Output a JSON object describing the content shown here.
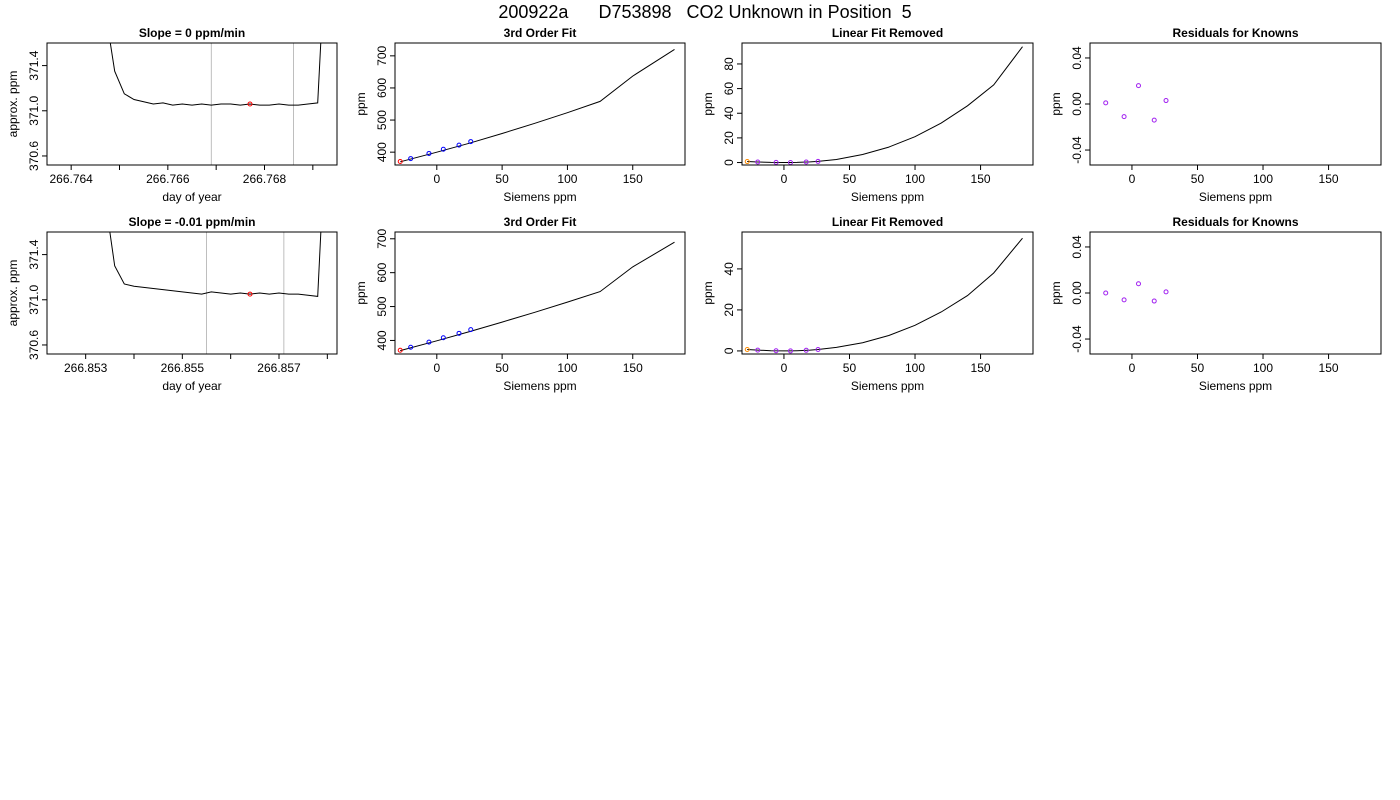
{
  "figure": {
    "title": "200922a      D753898   CO2 Unknown in Position  5"
  },
  "colors": {
    "line": "#000000",
    "marker_red": "#ff0000",
    "marker_blue": "#0000ff",
    "marker_orange": "#ff8c00",
    "marker_purple": "#a020f0",
    "vertical_lines": "#bebebe",
    "frame": "#000000"
  },
  "chart_data": [
    {
      "type": "line",
      "title": "Slope =  0  ppm/min",
      "xlabel": "day of year",
      "ylabel": "approx. ppm",
      "xlim": [
        266.7635,
        266.7695
      ],
      "ylim": [
        370.52,
        371.6
      ],
      "xticks": [
        266.764,
        266.765,
        266.766,
        266.767,
        266.768,
        266.769
      ],
      "xtick_labels": [
        "266.764",
        "",
        "266.766",
        "",
        "266.768",
        ""
      ],
      "yticks": [
        370.6,
        371.0,
        371.4
      ],
      "ytick_labels": [
        "370.6",
        "371.0",
        "371.4"
      ],
      "vlines": [
        266.7669,
        266.7686
      ],
      "series": [
        {
          "x": [
            266.7647,
            266.7649,
            266.7651,
            266.7653,
            266.7655,
            266.7657,
            266.7659,
            266.7661,
            266.7663,
            266.7665,
            266.7667,
            266.7669,
            266.7671,
            266.7673,
            266.7675,
            266.7677,
            266.7679,
            266.7681,
            266.7683,
            266.7685,
            266.7687,
            266.7689,
            266.7691,
            266.7692
          ],
          "y": [
            371.9,
            371.35,
            371.15,
            371.1,
            371.08,
            371.06,
            371.07,
            371.05,
            371.06,
            371.05,
            371.06,
            371.05,
            371.06,
            371.06,
            371.05,
            371.06,
            371.05,
            371.05,
            371.06,
            371.05,
            371.05,
            371.06,
            371.07,
            371.9
          ]
        }
      ],
      "points": [
        {
          "x": 266.7677,
          "y": 371.06,
          "color": "red"
        }
      ]
    },
    {
      "type": "line",
      "title": "3rd Order Fit",
      "xlabel": "Siemens ppm",
      "ylabel": "ppm",
      "xlim": [
        -32,
        190
      ],
      "ylim": [
        360,
        740
      ],
      "xticks": [
        0,
        50,
        100,
        150
      ],
      "xtick_labels": [
        "0",
        "50",
        "100",
        "150"
      ],
      "yticks": [
        400,
        500,
        600,
        700
      ],
      "ytick_labels": [
        "400",
        "500",
        "600",
        "700"
      ],
      "series": [
        {
          "x": [
            -28,
            0,
            25,
            50,
            75,
            100,
            125,
            150,
            182
          ],
          "y": [
            370,
            400,
            428,
            458,
            490,
            523,
            558,
            637,
            720
          ]
        }
      ],
      "points": [
        {
          "x": -28,
          "y": 371,
          "color": "red"
        },
        {
          "x": -20,
          "y": 380,
          "color": "blue"
        },
        {
          "x": -6,
          "y": 396,
          "color": "blue"
        },
        {
          "x": 5,
          "y": 409,
          "color": "blue"
        },
        {
          "x": 17,
          "y": 422,
          "color": "blue"
        },
        {
          "x": 26,
          "y": 433,
          "color": "blue"
        }
      ]
    },
    {
      "type": "line",
      "title": "Linear Fit Removed",
      "xlabel": "Siemens ppm",
      "ylabel": "ppm",
      "xlim": [
        -32,
        190
      ],
      "ylim": [
        -2,
        97
      ],
      "xticks": [
        0,
        50,
        100,
        150
      ],
      "xtick_labels": [
        "0",
        "50",
        "100",
        "150"
      ],
      "yticks": [
        0,
        20,
        40,
        60,
        80
      ],
      "ytick_labels": [
        "0",
        "20",
        "40",
        "60",
        "80"
      ],
      "series": [
        {
          "x": [
            -28,
            -20,
            -10,
            0,
            5,
            10,
            20,
            26,
            40,
            60,
            80,
            100,
            120,
            140,
            160,
            182
          ],
          "y": [
            0.8,
            0.4,
            0.1,
            0,
            0,
            0.1,
            0.5,
            0.9,
            2.5,
            6.5,
            12.5,
            21,
            32,
            46,
            63,
            94
          ]
        }
      ],
      "points": [
        {
          "x": -28,
          "y": 0.8,
          "color": "orange"
        },
        {
          "x": -20,
          "y": 0.4,
          "color": "purple"
        },
        {
          "x": -6,
          "y": 0.1,
          "color": "purple"
        },
        {
          "x": 5,
          "y": 0,
          "color": "purple"
        },
        {
          "x": 17,
          "y": 0.4,
          "color": "purple"
        },
        {
          "x": 26,
          "y": 0.9,
          "color": "purple"
        }
      ]
    },
    {
      "type": "scatter",
      "title": "Residuals for Knowns",
      "xlabel": "Siemens ppm",
      "ylabel": "ppm",
      "xlim": [
        -32,
        190
      ],
      "ylim": [
        -0.053,
        0.053
      ],
      "xticks": [
        0,
        50,
        100,
        150
      ],
      "xtick_labels": [
        "0",
        "50",
        "100",
        "150"
      ],
      "yticks": [
        -0.04,
        0.0,
        0.04
      ],
      "ytick_labels": [
        "-0.04",
        "0.00",
        "0.04"
      ],
      "points": [
        {
          "x": -20,
          "y": 0.001,
          "color": "purple"
        },
        {
          "x": -6,
          "y": -0.011,
          "color": "purple"
        },
        {
          "x": 5,
          "y": 0.016,
          "color": "purple"
        },
        {
          "x": 17,
          "y": -0.014,
          "color": "purple"
        },
        {
          "x": 26,
          "y": 0.003,
          "color": "purple"
        }
      ]
    },
    {
      "type": "line",
      "title": "Slope =  -0.01  ppm/min",
      "xlabel": "day of year",
      "ylabel": "approx. ppm",
      "xlim": [
        266.8522,
        266.8582
      ],
      "ylim": [
        370.52,
        371.6
      ],
      "xticks": [
        266.853,
        266.854,
        266.855,
        266.856,
        266.857,
        266.858
      ],
      "xtick_labels": [
        "266.853",
        "",
        "266.855",
        "",
        "266.857",
        ""
      ],
      "yticks": [
        370.6,
        371.0,
        371.4
      ],
      "ytick_labels": [
        "370.6",
        "371.0",
        "371.4"
      ],
      "vlines": [
        266.8555,
        266.8571
      ],
      "series": [
        {
          "x": [
            266.8534,
            266.8536,
            266.8538,
            266.854,
            266.8542,
            266.8544,
            266.8546,
            266.8548,
            266.855,
            266.8552,
            266.8554,
            266.8556,
            266.8558,
            266.856,
            266.8562,
            266.8564,
            266.8566,
            266.8568,
            266.857,
            266.8572,
            266.8574,
            266.8576,
            266.8578,
            266.8579
          ],
          "y": [
            371.9,
            371.3,
            371.14,
            371.12,
            371.11,
            371.1,
            371.09,
            371.08,
            371.07,
            371.06,
            371.05,
            371.07,
            371.06,
            371.05,
            371.06,
            371.05,
            371.06,
            371.05,
            371.06,
            371.05,
            371.05,
            371.04,
            371.03,
            371.9
          ]
        }
      ],
      "points": [
        {
          "x": 266.8564,
          "y": 371.05,
          "color": "red"
        }
      ]
    },
    {
      "type": "line",
      "title": "3rd Order Fit",
      "xlabel": "Siemens ppm",
      "ylabel": "ppm",
      "xlim": [
        -32,
        190
      ],
      "ylim": [
        360,
        720
      ],
      "xticks": [
        0,
        50,
        100,
        150
      ],
      "xtick_labels": [
        "0",
        "50",
        "100",
        "150"
      ],
      "yticks": [
        400,
        500,
        600,
        700
      ],
      "ytick_labels": [
        "400",
        "500",
        "600",
        "700"
      ],
      "series": [
        {
          "x": [
            -28,
            0,
            25,
            50,
            75,
            100,
            125,
            150,
            182
          ],
          "y": [
            370,
            399,
            426,
            454,
            483,
            513,
            544,
            617,
            690
          ]
        }
      ],
      "points": [
        {
          "x": -28,
          "y": 371,
          "color": "red"
        },
        {
          "x": -20,
          "y": 380,
          "color": "blue"
        },
        {
          "x": -6,
          "y": 395,
          "color": "blue"
        },
        {
          "x": 5,
          "y": 408,
          "color": "blue"
        },
        {
          "x": 17,
          "y": 421,
          "color": "blue"
        },
        {
          "x": 26,
          "y": 432,
          "color": "blue"
        }
      ]
    },
    {
      "type": "line",
      "title": "Linear Fit Removed",
      "xlabel": "Siemens ppm",
      "ylabel": "ppm",
      "xlim": [
        -32,
        190
      ],
      "ylim": [
        -1.5,
        58
      ],
      "xticks": [
        0,
        50,
        100,
        150
      ],
      "xtick_labels": [
        "0",
        "50",
        "100",
        "150"
      ],
      "yticks": [
        0,
        20,
        40
      ],
      "ytick_labels": [
        "0",
        "20",
        "40"
      ],
      "series": [
        {
          "x": [
            -28,
            -20,
            -10,
            0,
            5,
            10,
            20,
            26,
            40,
            60,
            80,
            100,
            120,
            140,
            160,
            182
          ],
          "y": [
            0.7,
            0.4,
            0.1,
            0,
            0,
            0.1,
            0.4,
            0.7,
            1.7,
            4,
            7.5,
            12.5,
            19,
            27,
            38,
            55
          ]
        }
      ],
      "points": [
        {
          "x": -28,
          "y": 0.7,
          "color": "orange"
        },
        {
          "x": -20,
          "y": 0.4,
          "color": "purple"
        },
        {
          "x": -6,
          "y": 0.1,
          "color": "purple"
        },
        {
          "x": 5,
          "y": 0,
          "color": "purple"
        },
        {
          "x": 17,
          "y": 0.3,
          "color": "purple"
        },
        {
          "x": 26,
          "y": 0.7,
          "color": "purple"
        }
      ]
    },
    {
      "type": "scatter",
      "title": "Residuals for Knowns",
      "xlabel": "Siemens ppm",
      "ylabel": "ppm",
      "xlim": [
        -32,
        190
      ],
      "ylim": [
        -0.053,
        0.053
      ],
      "xticks": [
        0,
        50,
        100,
        150
      ],
      "xtick_labels": [
        "0",
        "50",
        "100",
        "150"
      ],
      "yticks": [
        -0.04,
        0.0,
        0.04
      ],
      "ytick_labels": [
        "-0.04",
        "0.00",
        "0.04"
      ],
      "points": [
        {
          "x": -20,
          "y": 0.0,
          "color": "purple"
        },
        {
          "x": -6,
          "y": -0.006,
          "color": "purple"
        },
        {
          "x": 5,
          "y": 0.008,
          "color": "purple"
        },
        {
          "x": 17,
          "y": -0.007,
          "color": "purple"
        },
        {
          "x": 26,
          "y": 0.001,
          "color": "purple"
        }
      ]
    }
  ]
}
